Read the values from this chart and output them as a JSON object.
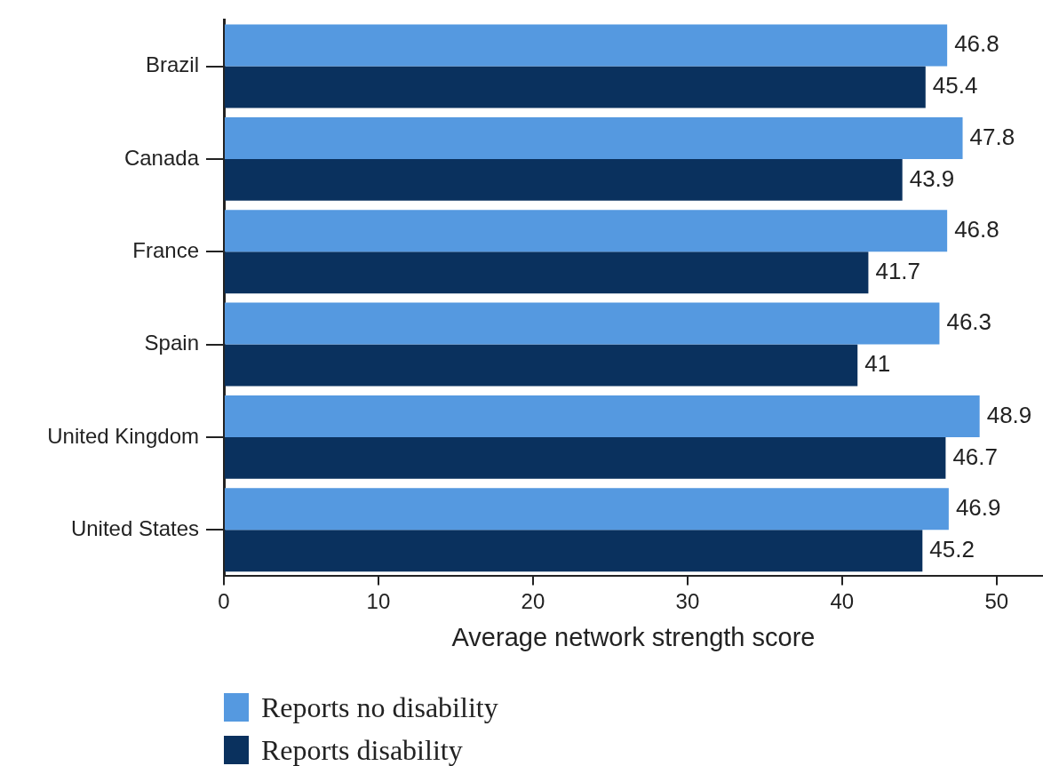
{
  "chart_data": {
    "type": "bar",
    "orientation": "horizontal",
    "xlabel": "Average network strength score",
    "categories": [
      "Brazil",
      "Canada",
      "France",
      "Spain",
      "United Kingdom",
      "United States"
    ],
    "series": [
      {
        "name": "Reports no disability",
        "color": "#5599e0",
        "values": [
          46.8,
          47.8,
          46.8,
          46.3,
          48.9,
          46.9
        ]
      },
      {
        "name": "Reports disability",
        "color": "#0a315e",
        "values": [
          45.4,
          43.9,
          41.7,
          41,
          46.7,
          45.2
        ]
      }
    ],
    "xlim": [
      0,
      53
    ],
    "xticks": [
      0,
      10,
      20,
      30,
      40,
      50
    ],
    "data_labels": true,
    "grid": false,
    "legend": "bottom left"
  }
}
